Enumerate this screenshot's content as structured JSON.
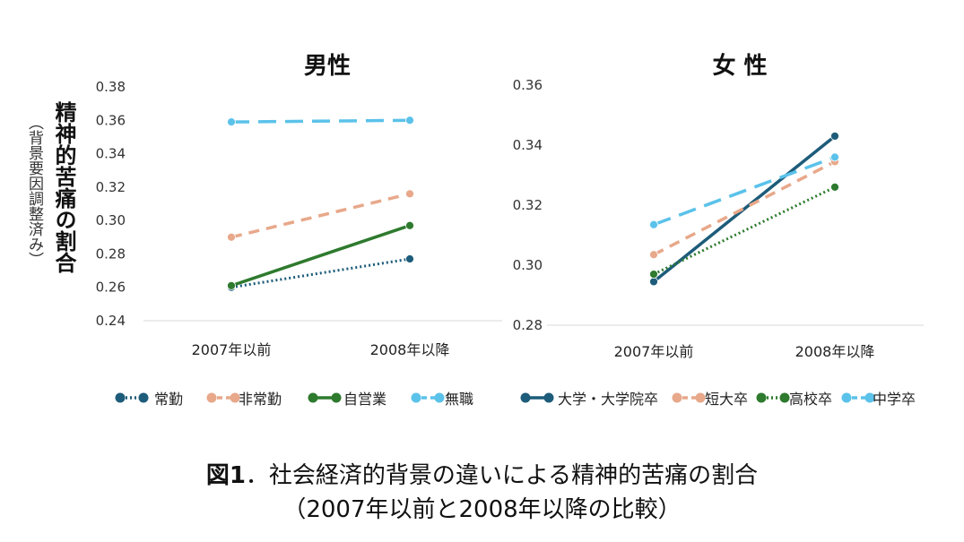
{
  "y_axis_title": "精神的苦痛の割合",
  "y_axis_subtitle": "（背景要因調整済み）",
  "chart_data": [
    {
      "type": "line",
      "title": "男性",
      "categories": [
        "2007年以前",
        "2008年以降"
      ],
      "ylim": [
        0.24,
        0.38
      ],
      "yticks": [
        "0.24",
        "0.26",
        "0.28",
        "0.30",
        "0.32",
        "0.34",
        "0.36",
        "0.38"
      ],
      "legend_position": "bottom",
      "series": [
        {
          "name": "常勤",
          "values": [
            0.26,
            0.277
          ],
          "color": "#1d5c7a",
          "style": "dotted"
        },
        {
          "name": "非常勤",
          "values": [
            0.29,
            0.316
          ],
          "color": "#e8a88a",
          "style": "dashed"
        },
        {
          "name": "自営業",
          "values": [
            0.261,
            0.297
          ],
          "color": "#2e7a2e",
          "style": "solid"
        },
        {
          "name": "無職",
          "values": [
            0.359,
            0.36
          ],
          "color": "#5bc2ea",
          "style": "longdash"
        }
      ]
    },
    {
      "type": "line",
      "title": "女 性",
      "categories": [
        "2007年以前",
        "2008年以降"
      ],
      "ylim": [
        0.28,
        0.36
      ],
      "yticks": [
        "0.28",
        "0.30",
        "0.32",
        "0.34",
        "0.36"
      ],
      "legend_position": "bottom",
      "series": [
        {
          "name": "大学・大学院卒",
          "values": [
            0.2945,
            0.343
          ],
          "color": "#1d5c7a",
          "style": "solid"
        },
        {
          "name": "短大卒",
          "values": [
            0.3035,
            0.3345
          ],
          "color": "#e8a88a",
          "style": "dashed"
        },
        {
          "name": "高校卒",
          "values": [
            0.297,
            0.326
          ],
          "color": "#2e7a2e",
          "style": "dotted"
        },
        {
          "name": "中学卒",
          "values": [
            0.3135,
            0.336
          ],
          "color": "#5bc2ea",
          "style": "longdash"
        }
      ]
    }
  ],
  "caption": {
    "fig_label": "図1",
    "line1": "．社会経済的背景の違いによる精神的苦痛の割合",
    "line2": "（2007年以前と2008年以降の比較）"
  }
}
